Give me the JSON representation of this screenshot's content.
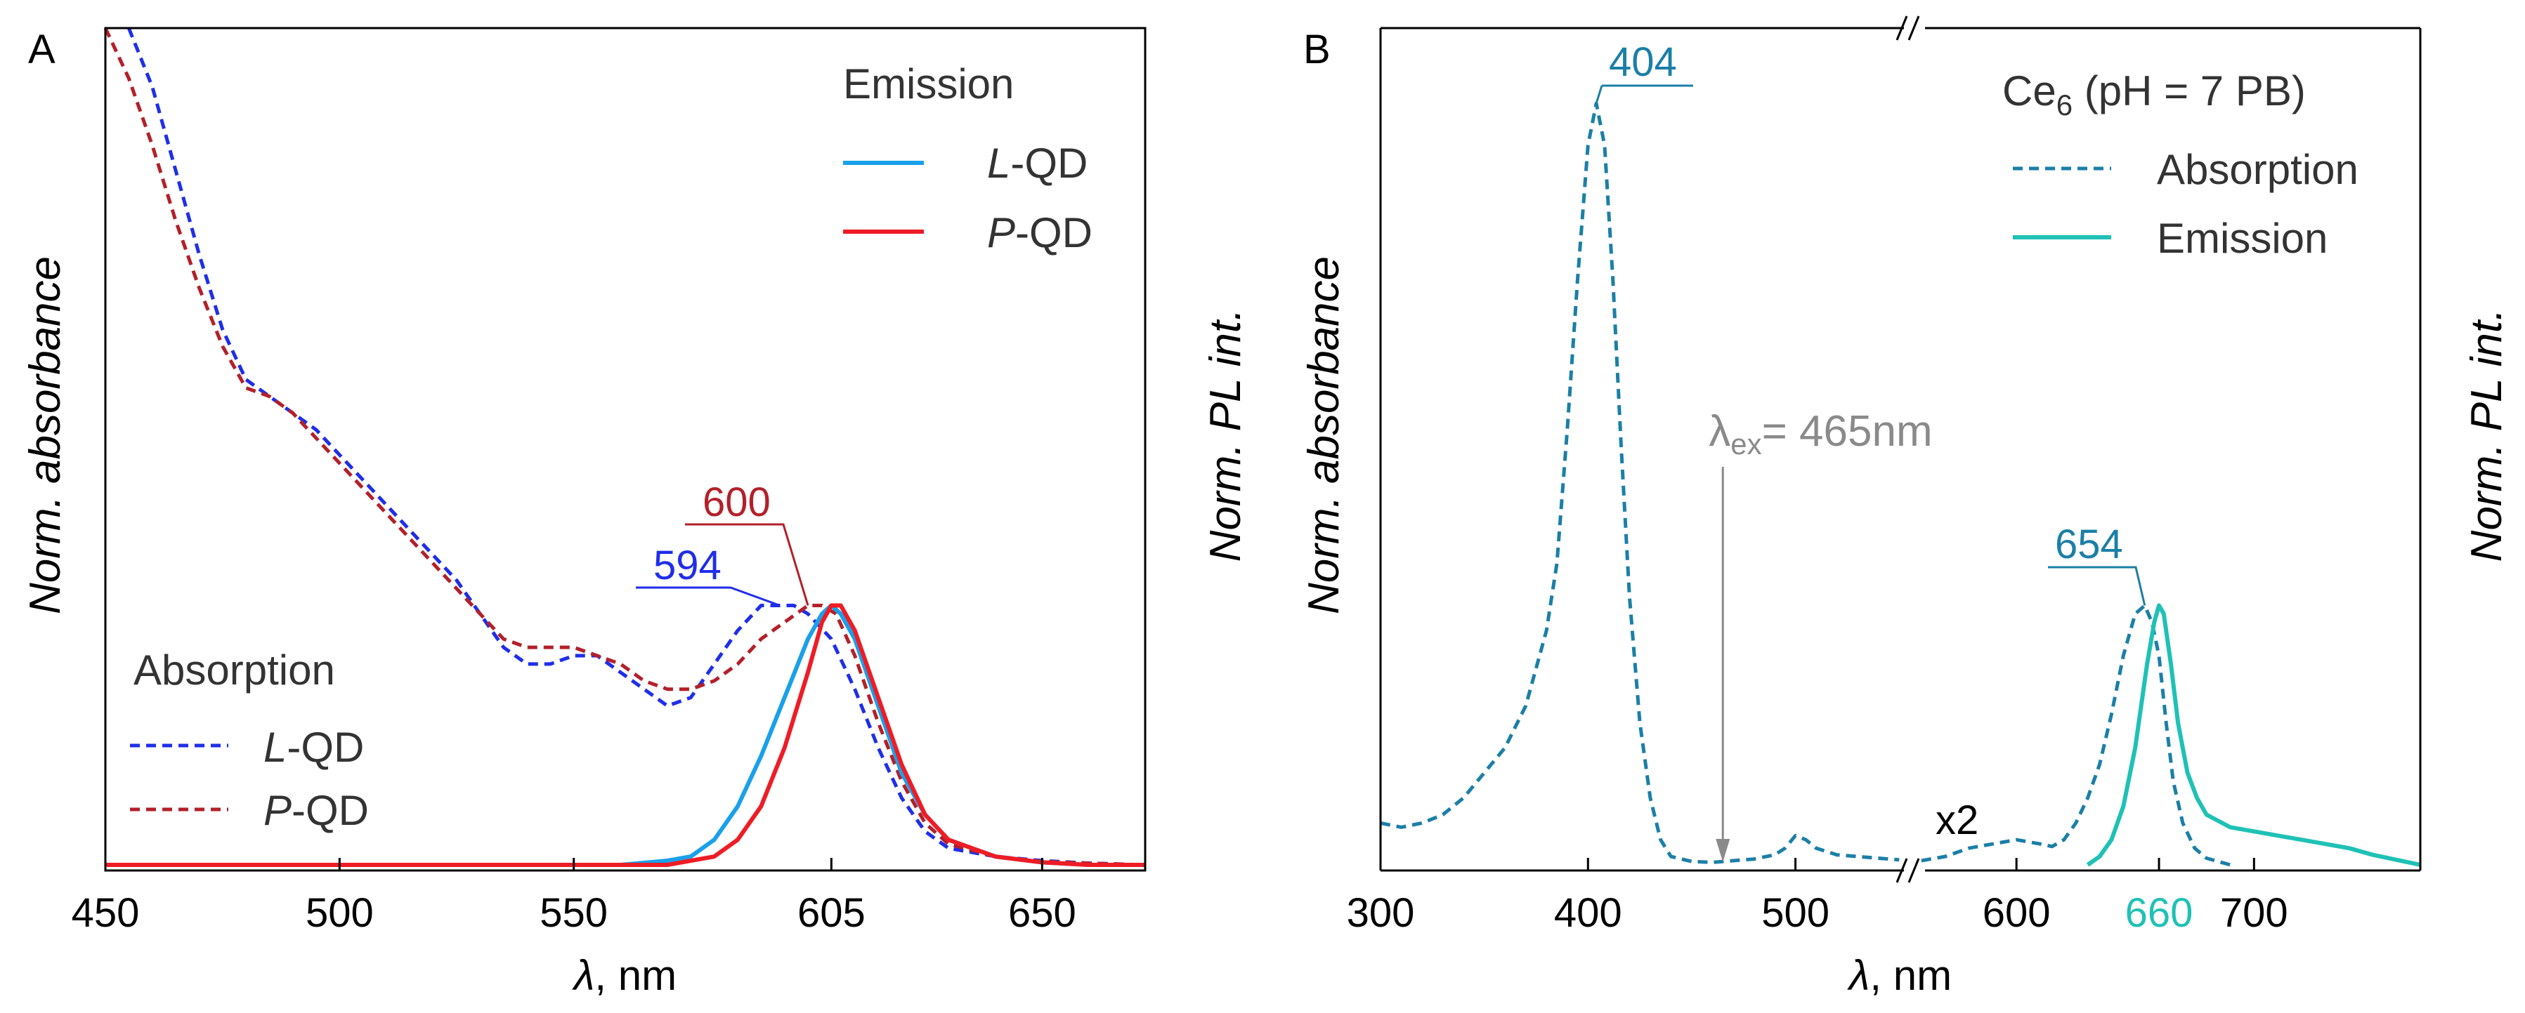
{
  "colors": {
    "lqd_blue": "#1f2ee8",
    "pqd_red": "#b3202a",
    "lqd_emission": "#1aa0ea",
    "pqd_emission": "#ee1c25",
    "ce6_abs": "#1b7fa7",
    "ce6_em": "#1fc1b5",
    "annot_gray": "#8a8a8a",
    "axis": "#000000"
  },
  "chart_data": [
    {
      "panel": "A",
      "panel_label": "A",
      "type": "line",
      "xlabel_symbol": "λ",
      "xlabel_unit": ", nm",
      "ylabel_left": "Norm. absorbance",
      "ylabel_right": "Norm. PL int.",
      "xlim": [
        450,
        672
      ],
      "ylim": [
        0,
        1
      ],
      "x_ticks": [
        {
          "value": 450,
          "label": "450"
        },
        {
          "value": 500,
          "label": "500"
        },
        {
          "value": 550,
          "label": "550"
        },
        {
          "value": 605,
          "label": "605"
        },
        {
          "value": 650,
          "label": "650"
        }
      ],
      "legend": {
        "emission_title": "Emission",
        "absorption_title": "Absorption",
        "entries": [
          {
            "group": "emission",
            "prefix": "L",
            "suffix": "-QD",
            "series": "L-QD emission"
          },
          {
            "group": "emission",
            "prefix": "P",
            "suffix": "-QD",
            "series": "P-QD emission"
          },
          {
            "group": "absorption",
            "prefix": "L",
            "suffix": "-QD",
            "series": "L-QD absorption"
          },
          {
            "group": "absorption",
            "prefix": "P",
            "suffix": "-QD",
            "series": "P-QD absorption"
          }
        ]
      },
      "annotations": [
        {
          "text": "600",
          "x": 600,
          "y": 0.31,
          "color_key": "pqd_red"
        },
        {
          "text": "594",
          "x": 594,
          "y": 0.31,
          "color_key": "lqd_blue"
        }
      ],
      "series": [
        {
          "name": "L-QD absorption",
          "style": "dashed",
          "color_key": "lqd_blue",
          "points": [
            [
              455,
              1.0
            ],
            [
              460,
              0.93
            ],
            [
              465,
              0.83
            ],
            [
              470,
              0.73
            ],
            [
              475,
              0.64
            ],
            [
              480,
              0.58
            ],
            [
              485,
              0.56
            ],
            [
              490,
              0.54
            ],
            [
              495,
              0.52
            ],
            [
              500,
              0.49
            ],
            [
              505,
              0.46
            ],
            [
              510,
              0.43
            ],
            [
              515,
              0.4
            ],
            [
              520,
              0.37
            ],
            [
              525,
              0.34
            ],
            [
              530,
              0.3
            ],
            [
              535,
              0.26
            ],
            [
              540,
              0.24
            ],
            [
              545,
              0.24
            ],
            [
              550,
              0.25
            ],
            [
              555,
              0.25
            ],
            [
              560,
              0.23
            ],
            [
              565,
              0.21
            ],
            [
              570,
              0.19
            ],
            [
              575,
              0.2
            ],
            [
              580,
              0.24
            ],
            [
              585,
              0.28
            ],
            [
              590,
              0.31
            ],
            [
              594,
              0.31
            ],
            [
              597,
              0.31
            ],
            [
              600,
              0.3
            ],
            [
              605,
              0.27
            ],
            [
              610,
              0.21
            ],
            [
              615,
              0.14
            ],
            [
              620,
              0.08
            ],
            [
              625,
              0.04
            ],
            [
              630,
              0.02
            ],
            [
              640,
              0.01
            ],
            [
              650,
              0.005
            ],
            [
              660,
              0.002
            ],
            [
              672,
              0.0
            ]
          ]
        },
        {
          "name": "P-QD absorption",
          "style": "dashed",
          "color_key": "pqd_red",
          "points": [
            [
              450,
              1.0
            ],
            [
              455,
              0.94
            ],
            [
              460,
              0.86
            ],
            [
              465,
              0.77
            ],
            [
              470,
              0.69
            ],
            [
              475,
              0.62
            ],
            [
              480,
              0.57
            ],
            [
              485,
              0.56
            ],
            [
              490,
              0.54
            ],
            [
              495,
              0.51
            ],
            [
              500,
              0.48
            ],
            [
              505,
              0.45
            ],
            [
              510,
              0.42
            ],
            [
              515,
              0.39
            ],
            [
              520,
              0.36
            ],
            [
              525,
              0.33
            ],
            [
              530,
              0.3
            ],
            [
              535,
              0.27
            ],
            [
              540,
              0.26
            ],
            [
              545,
              0.26
            ],
            [
              550,
              0.26
            ],
            [
              555,
              0.25
            ],
            [
              560,
              0.24
            ],
            [
              565,
              0.22
            ],
            [
              570,
              0.21
            ],
            [
              575,
              0.21
            ],
            [
              580,
              0.22
            ],
            [
              585,
              0.24
            ],
            [
              590,
              0.27
            ],
            [
              595,
              0.29
            ],
            [
              600,
              0.31
            ],
            [
              603,
              0.31
            ],
            [
              606,
              0.3
            ],
            [
              610,
              0.25
            ],
            [
              615,
              0.17
            ],
            [
              620,
              0.1
            ],
            [
              625,
              0.05
            ],
            [
              630,
              0.025
            ],
            [
              640,
              0.01
            ],
            [
              650,
              0.004
            ],
            [
              660,
              0.002
            ],
            [
              672,
              0.0
            ]
          ]
        },
        {
          "name": "L-QD emission",
          "style": "solid",
          "color_key": "lqd_emission",
          "points": [
            [
              450,
              0.0
            ],
            [
              560,
              0.0
            ],
            [
              570,
              0.005
            ],
            [
              575,
              0.01
            ],
            [
              580,
              0.03
            ],
            [
              585,
              0.07
            ],
            [
              590,
              0.13
            ],
            [
              595,
              0.2
            ],
            [
              600,
              0.27
            ],
            [
              603,
              0.3
            ],
            [
              605,
              0.31
            ],
            [
              607,
              0.3
            ],
            [
              610,
              0.27
            ],
            [
              615,
              0.19
            ],
            [
              620,
              0.11
            ],
            [
              625,
              0.06
            ],
            [
              630,
              0.03
            ],
            [
              640,
              0.01
            ],
            [
              650,
              0.003
            ],
            [
              660,
              0.0
            ],
            [
              672,
              0.0
            ]
          ]
        },
        {
          "name": "P-QD emission",
          "style": "solid",
          "color_key": "pqd_emission",
          "points": [
            [
              450,
              0.0
            ],
            [
              570,
              0.0
            ],
            [
              580,
              0.01
            ],
            [
              585,
              0.03
            ],
            [
              590,
              0.07
            ],
            [
              595,
              0.14
            ],
            [
              600,
              0.23
            ],
            [
              603,
              0.29
            ],
            [
              605,
              0.31
            ],
            [
              607,
              0.31
            ],
            [
              610,
              0.28
            ],
            [
              615,
              0.2
            ],
            [
              620,
              0.12
            ],
            [
              625,
              0.06
            ],
            [
              630,
              0.03
            ],
            [
              640,
              0.01
            ],
            [
              650,
              0.003
            ],
            [
              660,
              0.0
            ],
            [
              672,
              0.0
            ]
          ]
        }
      ]
    },
    {
      "panel": "B",
      "panel_label": "B",
      "type": "line",
      "xlabel_symbol": "λ",
      "xlabel_unit": ", nm",
      "ylabel_left": "Norm. absorbance",
      "ylabel_right": "Norm. PL int.",
      "broken_axis": true,
      "left_segment_xlim": [
        300,
        555
      ],
      "right_segment_xlim": [
        555,
        770
      ],
      "ylim": [
        0,
        1
      ],
      "x_ticks": [
        {
          "value": 300,
          "label": "300",
          "segment": "left",
          "highlight": false
        },
        {
          "value": 400,
          "label": "400",
          "segment": "left",
          "highlight": false
        },
        {
          "value": 500,
          "label": "500",
          "segment": "left",
          "highlight": false
        },
        {
          "value": 600,
          "label": "600",
          "segment": "right",
          "highlight": false
        },
        {
          "value": 660,
          "label": "660",
          "segment": "right",
          "highlight": true
        },
        {
          "value": 700,
          "label": "700",
          "segment": "right",
          "highlight": false
        }
      ],
      "legend": {
        "title_main": "Ce",
        "title_sub": "6",
        "title_tail": " (pH = 7 PB)",
        "entries": [
          {
            "label": "Absorption",
            "style": "dashed",
            "color_key": "ce6_abs"
          },
          {
            "label": "Emission",
            "style": "solid",
            "color_key": "ce6_em"
          }
        ]
      },
      "excitation": {
        "symbol": "λ",
        "subscript": "ex",
        "value_text": "= 465nm",
        "x": 465
      },
      "annotations": [
        {
          "text": "404",
          "x": 404,
          "y": 0.91,
          "color_key": "ce6_abs"
        },
        {
          "text": "654",
          "x": 654,
          "y": 0.31,
          "color_key": "ce6_abs"
        },
        {
          "text": "x2",
          "x": 590,
          "y": 0.05,
          "color_key": "axis"
        }
      ],
      "series": [
        {
          "name": "Ce6 absorption (Soret region)",
          "style": "dashed",
          "color_key": "ce6_abs",
          "segment": "left",
          "points": [
            [
              300,
              0.05
            ],
            [
              310,
              0.045
            ],
            [
              320,
              0.05
            ],
            [
              330,
              0.06
            ],
            [
              340,
              0.08
            ],
            [
              350,
              0.11
            ],
            [
              360,
              0.14
            ],
            [
              370,
              0.19
            ],
            [
              380,
              0.28
            ],
            [
              385,
              0.36
            ],
            [
              390,
              0.52
            ],
            [
              395,
              0.7
            ],
            [
              400,
              0.86
            ],
            [
              404,
              0.91
            ],
            [
              408,
              0.86
            ],
            [
              412,
              0.7
            ],
            [
              416,
              0.5
            ],
            [
              420,
              0.32
            ],
            [
              425,
              0.17
            ],
            [
              430,
              0.08
            ],
            [
              435,
              0.03
            ],
            [
              440,
              0.01
            ],
            [
              450,
              0.004
            ],
            [
              460,
              0.003
            ],
            [
              470,
              0.005
            ],
            [
              480,
              0.007
            ],
            [
              490,
              0.012
            ],
            [
              495,
              0.02
            ],
            [
              500,
              0.035
            ],
            [
              505,
              0.03
            ],
            [
              510,
              0.02
            ],
            [
              520,
              0.012
            ],
            [
              530,
              0.01
            ],
            [
              540,
              0.008
            ],
            [
              550,
              0.006
            ]
          ]
        },
        {
          "name": "Ce6 absorption (Q-band, x2)",
          "style": "dashed",
          "color_key": "ce6_abs",
          "segment": "right",
          "points": [
            [
              560,
              0.005
            ],
            [
              570,
              0.01
            ],
            [
              580,
              0.02
            ],
            [
              590,
              0.025
            ],
            [
              600,
              0.03
            ],
            [
              610,
              0.025
            ],
            [
              615,
              0.022
            ],
            [
              620,
              0.03
            ],
            [
              625,
              0.05
            ],
            [
              630,
              0.08
            ],
            [
              635,
              0.12
            ],
            [
              640,
              0.18
            ],
            [
              645,
              0.25
            ],
            [
              650,
              0.3
            ],
            [
              654,
              0.31
            ],
            [
              657,
              0.29
            ],
            [
              660,
              0.25
            ],
            [
              663,
              0.17
            ],
            [
              666,
              0.1
            ],
            [
              670,
              0.05
            ],
            [
              675,
              0.02
            ],
            [
              680,
              0.008
            ],
            [
              690,
              0.0
            ]
          ]
        },
        {
          "name": "Ce6 emission",
          "style": "solid",
          "color_key": "ce6_em",
          "segment": "right",
          "points": [
            [
              630,
              0.0
            ],
            [
              635,
              0.01
            ],
            [
              640,
              0.03
            ],
            [
              645,
              0.07
            ],
            [
              650,
              0.14
            ],
            [
              655,
              0.24
            ],
            [
              658,
              0.29
            ],
            [
              660,
              0.31
            ],
            [
              662,
              0.3
            ],
            [
              665,
              0.24
            ],
            [
              668,
              0.17
            ],
            [
              672,
              0.11
            ],
            [
              676,
              0.08
            ],
            [
              680,
              0.06
            ],
            [
              690,
              0.045
            ],
            [
              700,
              0.04
            ],
            [
              710,
              0.035
            ],
            [
              720,
              0.03
            ],
            [
              730,
              0.025
            ],
            [
              740,
              0.02
            ],
            [
              750,
              0.012
            ],
            [
              760,
              0.006
            ],
            [
              770,
              0.0
            ]
          ]
        }
      ]
    }
  ]
}
